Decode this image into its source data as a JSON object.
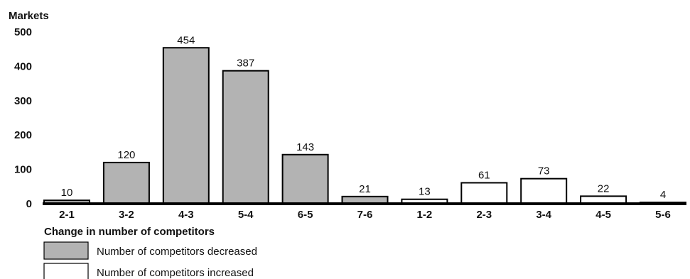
{
  "chart_data": {
    "type": "bar",
    "ylabel": "Markets",
    "xlabel": "Change in number of competitors",
    "ylim": [
      0,
      500
    ],
    "yticks": [
      0,
      100,
      200,
      300,
      400,
      500
    ],
    "grid": false,
    "legend_position": "bottom-left",
    "categories": [
      "2-1",
      "3-2",
      "4-3",
      "5-4",
      "6-5",
      "7-6",
      "1-2",
      "2-3",
      "3-4",
      "4-5",
      "5-6"
    ],
    "values": [
      10,
      120,
      454,
      387,
      143,
      21,
      13,
      61,
      73,
      22,
      4
    ],
    "groups": [
      "decreased",
      "decreased",
      "decreased",
      "decreased",
      "decreased",
      "decreased",
      "increased",
      "increased",
      "increased",
      "increased",
      "increased"
    ],
    "series": [
      {
        "key": "decreased",
        "name": "Number of competitors decreased",
        "color": "#b3b3b3"
      },
      {
        "key": "increased",
        "name": "Number of competitors increased",
        "color": "#ffffff"
      }
    ]
  }
}
